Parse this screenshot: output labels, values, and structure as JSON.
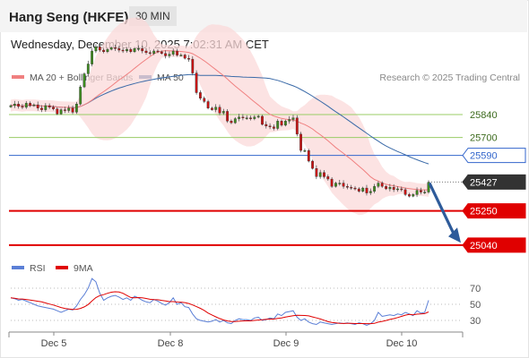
{
  "header": {
    "symbol": "Hang Seng (HKFE)",
    "timeframe": "30 MIN"
  },
  "datetime": "Wednesday, December 10, 2025 7:02:31 AM CET",
  "legend": {
    "ma20": "MA 20 + Bollinger Bands",
    "ma50": "MA 50",
    "ma20_color": "#f08080",
    "ma50_color": "#3a6aa8"
  },
  "credit": "Research © 2025 Trading Central",
  "rsi_legend": {
    "rsi": "RSI",
    "ma": "9MA",
    "rsi_color": "#5b7fd6",
    "ma_color": "#e00000"
  },
  "colors": {
    "up": "#3d8c1e",
    "down": "#cc1111",
    "resistance": "#99cc66",
    "pivot": "#3366cc",
    "support": "#e00000",
    "last_bg": "#333333"
  },
  "chart_data": [
    {
      "type": "candlestick",
      "x_ticks": [
        "Dec 5",
        "Dec 8",
        "Dec 9",
        "Dec 10"
      ],
      "ylim": [
        24990,
        25950
      ],
      "levels": [
        {
          "label": "25840",
          "value": 25840,
          "kind": "resistance"
        },
        {
          "label": "25700",
          "value": 25700,
          "kind": "resistance"
        },
        {
          "label": "25590",
          "value": 25590,
          "kind": "pivot"
        },
        {
          "label": "25427",
          "value": 25427,
          "kind": "last"
        },
        {
          "label": "25250",
          "value": 25250,
          "kind": "support"
        },
        {
          "label": "25040",
          "value": 25040,
          "kind": "support"
        }
      ],
      "forecast": {
        "from": 25420,
        "to": 25060
      },
      "close": [
        25895,
        25905,
        25890,
        25885,
        25910,
        25895,
        25900,
        25880,
        25870,
        25895,
        25885,
        25875,
        25845,
        25870,
        25865,
        25880,
        25855,
        25905,
        26010,
        26090,
        26150,
        26230,
        26255,
        26235,
        26225,
        26240,
        26250,
        26245,
        26235,
        26230,
        26240,
        26225,
        26245,
        26245,
        26230,
        26220,
        26215,
        26230,
        26225,
        26215,
        26200,
        26210,
        26230,
        26205,
        26205,
        26185,
        26180,
        26095,
        25975,
        25940,
        25920,
        25880,
        25870,
        25885,
        25850,
        25860,
        25800,
        25790,
        25815,
        25825,
        25820,
        25820,
        25815,
        25825,
        25830,
        25780,
        25770,
        25765,
        25755,
        25800,
        25775,
        25800,
        25810,
        25820,
        25720,
        25620,
        25620,
        25555,
        25510,
        25460,
        25485,
        25460,
        25445,
        25400,
        25420,
        25420,
        25400,
        25395,
        25390,
        25385,
        25370,
        25390,
        25360,
        25370,
        25400,
        25420,
        25400,
        25385,
        25395,
        25380,
        25385,
        25380,
        25350,
        25340,
        25350,
        25375,
        25365,
        25365,
        25425
      ]
    },
    {
      "type": "line",
      "title": "RSI",
      "ylim": [
        20,
        80
      ],
      "yticks": [
        70,
        50,
        30
      ],
      "rsi": [
        58,
        57,
        55,
        56,
        54,
        52,
        50,
        48,
        47,
        46,
        45,
        44,
        42,
        40,
        42,
        44,
        43,
        48,
        56,
        62,
        70,
        82,
        78,
        64,
        55,
        58,
        60,
        61,
        59,
        56,
        58,
        55,
        60,
        58,
        55,
        53,
        52,
        56,
        54,
        51,
        49,
        52,
        58,
        50,
        52,
        47,
        46,
        38,
        32,
        30,
        29,
        28,
        29,
        31,
        28,
        30,
        27,
        26,
        30,
        32,
        31,
        31,
        30,
        33,
        34,
        30,
        31,
        33,
        32,
        38,
        36,
        40,
        41,
        42,
        34,
        30,
        32,
        28,
        26,
        25,
        28,
        27,
        26,
        25,
        26,
        27,
        26,
        27,
        26,
        25,
        27,
        26,
        24,
        26,
        30,
        40,
        35,
        36,
        37,
        36,
        38,
        37,
        40,
        38,
        36,
        42,
        39,
        40,
        55
      ]
    }
  ]
}
